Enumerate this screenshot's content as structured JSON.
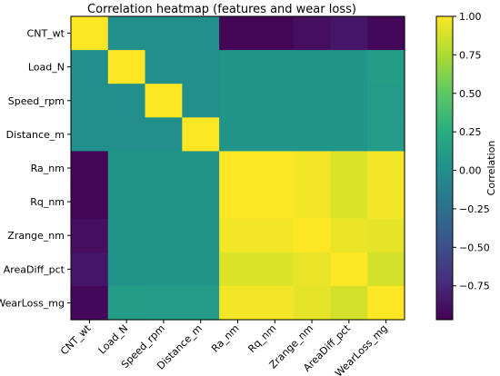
{
  "chart_data": {
    "type": "heatmap",
    "title": "Correlation heatmap (features and wear loss)",
    "rows": [
      "CNT_wt",
      "Load_N",
      "Speed_rpm",
      "Distance_m",
      "Ra_nm",
      "Rq_nm",
      "Zrange_nm",
      "AreaDiff_pct",
      "WearLoss_mg"
    ],
    "columns": [
      "CNT_wt",
      "Load_N",
      "Speed_rpm",
      "Distance_m",
      "Ra_nm",
      "Rq_nm",
      "Zrange_nm",
      "AreaDiff_pct",
      "WearLoss_mg"
    ],
    "values": [
      [
        1.0,
        0.0,
        0.0,
        0.0,
        -0.95,
        -0.95,
        -0.9,
        -0.85,
        -0.93
      ],
      [
        0.0,
        1.0,
        0.0,
        0.0,
        0.05,
        0.05,
        0.05,
        0.05,
        0.12
      ],
      [
        0.0,
        0.0,
        1.0,
        0.0,
        0.05,
        0.05,
        0.05,
        0.05,
        0.1
      ],
      [
        0.0,
        0.0,
        0.0,
        1.0,
        0.05,
        0.05,
        0.05,
        0.05,
        0.1
      ],
      [
        -0.95,
        0.05,
        0.05,
        0.05,
        1.0,
        1.0,
        0.97,
        0.9,
        0.97
      ],
      [
        -0.95,
        0.05,
        0.05,
        0.05,
        1.0,
        1.0,
        0.97,
        0.9,
        0.97
      ],
      [
        -0.9,
        0.05,
        0.05,
        0.05,
        0.97,
        0.97,
        1.0,
        0.94,
        0.93
      ],
      [
        -0.85,
        0.05,
        0.05,
        0.05,
        0.9,
        0.9,
        0.94,
        1.0,
        0.87
      ],
      [
        -0.93,
        0.12,
        0.1,
        0.1,
        0.97,
        0.97,
        0.93,
        0.87,
        1.0
      ]
    ],
    "colorbar": {
      "label": "Correlation",
      "ticks": [
        1.0,
        0.75,
        0.5,
        0.25,
        0.0,
        -0.25,
        -0.5,
        -0.75
      ],
      "tick_labels": [
        "1.00",
        "0.75",
        "0.50",
        "0.25",
        "0.00",
        "−0.25",
        "−0.50",
        "−0.75"
      ],
      "range": [
        -0.97,
        1.0
      ],
      "colormap": "viridis"
    }
  }
}
